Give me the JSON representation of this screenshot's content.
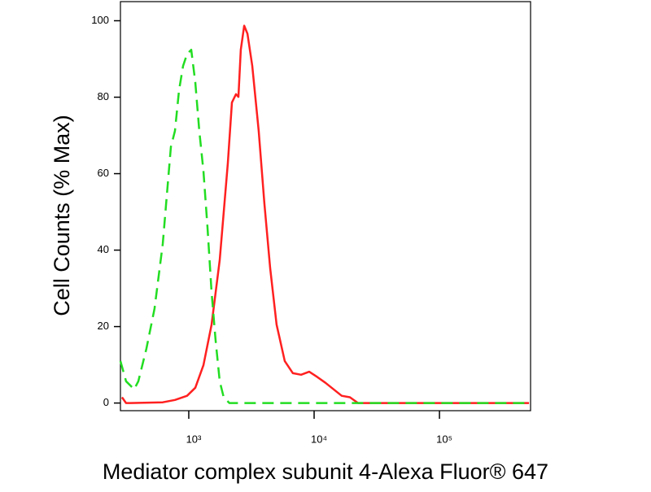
{
  "chart_data": {
    "type": "line",
    "x_label": "Mediator complex subunit 4-Alexa Fluor® 647",
    "y_label": "Cell Counts (% Max)",
    "xscale": "log",
    "xlim": [
      285,
      533000
    ],
    "ylim": [
      -2,
      105
    ],
    "xticks": [
      {
        "value": 1000,
        "label": "10³"
      },
      {
        "value": 10000,
        "label": "10⁴"
      },
      {
        "value": 100000,
        "label": "10⁵"
      }
    ],
    "yticks": [
      0,
      20,
      40,
      60,
      80,
      100
    ],
    "series": [
      {
        "color": "#ff2020",
        "dash": false,
        "x": [
          293,
          316,
          340,
          620,
          776,
          970,
          1127,
          1309,
          1520,
          1766,
          2050,
          2210,
          2380,
          2490,
          2600,
          2770,
          2940,
          3210,
          3610,
          4010,
          4460,
          5020,
          5830,
          6770,
          7870,
          9140,
          10600,
          12300,
          14300,
          16600,
          19300,
          22400,
          30300,
          55000,
          245000,
          518000
        ],
        "values": [
          1.5,
          0,
          0,
          0.2,
          0.8,
          1.9,
          4.0,
          9.9,
          20.5,
          37.4,
          62.8,
          78.6,
          80.8,
          80.1,
          92.4,
          98.7,
          96.6,
          88.2,
          71.2,
          52.2,
          35.3,
          20.5,
          11,
          7.8,
          7.4,
          8.2,
          6.8,
          5.3,
          3.6,
          1.9,
          1.5,
          0,
          0,
          0,
          0,
          0
        ]
      },
      {
        "color": "#22dd22",
        "dash": true,
        "x": [
          285,
          316,
          367,
          396,
          459,
          533,
          620,
          720,
          776,
          836,
          901,
          970,
          1046,
          1127,
          1214,
          1309,
          1410,
          1520,
          1638,
          1766,
          1900,
          2110,
          2770,
          12300,
          518000
        ],
        "values": [
          11,
          5.7,
          3.6,
          5.7,
          14.2,
          24.7,
          41.6,
          67,
          71.2,
          81.8,
          88.2,
          91.3,
          92.4,
          83.9,
          71.2,
          60.7,
          45.9,
          29,
          16.3,
          5.7,
          1.5,
          0,
          0,
          0,
          0
        ]
      }
    ]
  }
}
